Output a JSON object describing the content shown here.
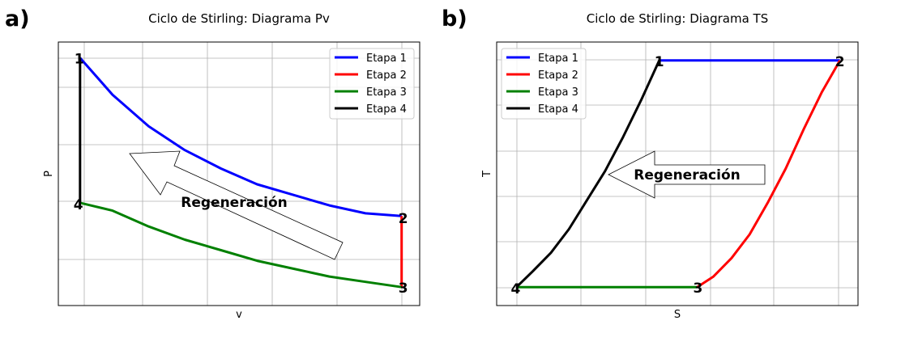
{
  "chart_data": [
    {
      "type": "line",
      "panel_label": "a)",
      "title": "Ciclo de Stirling: Diagrama Pv",
      "xlabel": "v",
      "ylabel": "P",
      "xlim": [
        0,
        1
      ],
      "ylim": [
        0,
        1
      ],
      "grid": true,
      "legend_position": "top-right",
      "ticks_labeled": false,
      "series": [
        {
          "name": "Etapa 1",
          "color": "#0000ff",
          "x": [
            0.06,
            0.15,
            0.25,
            0.35,
            0.45,
            0.55,
            0.65,
            0.75,
            0.85,
            0.95
          ],
          "y": [
            0.94,
            0.8,
            0.68,
            0.59,
            0.52,
            0.46,
            0.42,
            0.38,
            0.35,
            0.34
          ]
        },
        {
          "name": "Etapa 2",
          "color": "#ff0000",
          "x": [
            0.95,
            0.95
          ],
          "y": [
            0.34,
            0.07
          ]
        },
        {
          "name": "Etapa 3",
          "color": "#008000",
          "x": [
            0.95,
            0.85,
            0.75,
            0.65,
            0.55,
            0.45,
            0.35,
            0.25,
            0.15,
            0.06
          ],
          "y": [
            0.07,
            0.09,
            0.11,
            0.14,
            0.17,
            0.21,
            0.25,
            0.3,
            0.36,
            0.39
          ]
        },
        {
          "name": "Etapa 4",
          "color": "#000000",
          "x": [
            0.06,
            0.06
          ],
          "y": [
            0.39,
            0.94
          ]
        }
      ],
      "points": [
        {
          "label": "1",
          "x": 0.06,
          "y": 0.94
        },
        {
          "label": "2",
          "x": 0.95,
          "y": 0.34
        },
        {
          "label": "3",
          "x": 0.95,
          "y": 0.07
        },
        {
          "label": "4",
          "x": 0.06,
          "y": 0.39
        }
      ],
      "annotation": {
        "text": "Regeneración"
      }
    },
    {
      "type": "line",
      "panel_label": "b)",
      "title": "Ciclo de Stirling: Diagrama TS",
      "xlabel": "S",
      "ylabel": "T",
      "xlim": [
        0,
        1
      ],
      "ylim": [
        0,
        1
      ],
      "grid": true,
      "legend_position": "top-left",
      "ticks_labeled": false,
      "series": [
        {
          "name": "Etapa 1",
          "color": "#0000ff",
          "x": [
            0.45,
            0.95
          ],
          "y": [
            0.93,
            0.93
          ]
        },
        {
          "name": "Etapa 2",
          "color": "#ff0000",
          "x": [
            0.95,
            0.9,
            0.85,
            0.8,
            0.75,
            0.7,
            0.65,
            0.6,
            0.555
          ],
          "y": [
            0.93,
            0.81,
            0.67,
            0.52,
            0.39,
            0.27,
            0.18,
            0.11,
            0.07
          ]
        },
        {
          "name": "Etapa 3",
          "color": "#008000",
          "x": [
            0.555,
            0.055
          ],
          "y": [
            0.07,
            0.07
          ]
        },
        {
          "name": "Etapa 4",
          "color": "#000000",
          "x": [
            0.055,
            0.1,
            0.15,
            0.2,
            0.25,
            0.3,
            0.35,
            0.4,
            0.45
          ],
          "y": [
            0.07,
            0.13,
            0.2,
            0.29,
            0.4,
            0.51,
            0.64,
            0.78,
            0.93
          ]
        }
      ],
      "points": [
        {
          "label": "1",
          "x": 0.45,
          "y": 0.93
        },
        {
          "label": "2",
          "x": 0.95,
          "y": 0.93
        },
        {
          "label": "3",
          "x": 0.555,
          "y": 0.07
        },
        {
          "label": "4",
          "x": 0.055,
          "y": 0.07
        }
      ],
      "annotation": {
        "text": "Regeneración"
      }
    }
  ]
}
